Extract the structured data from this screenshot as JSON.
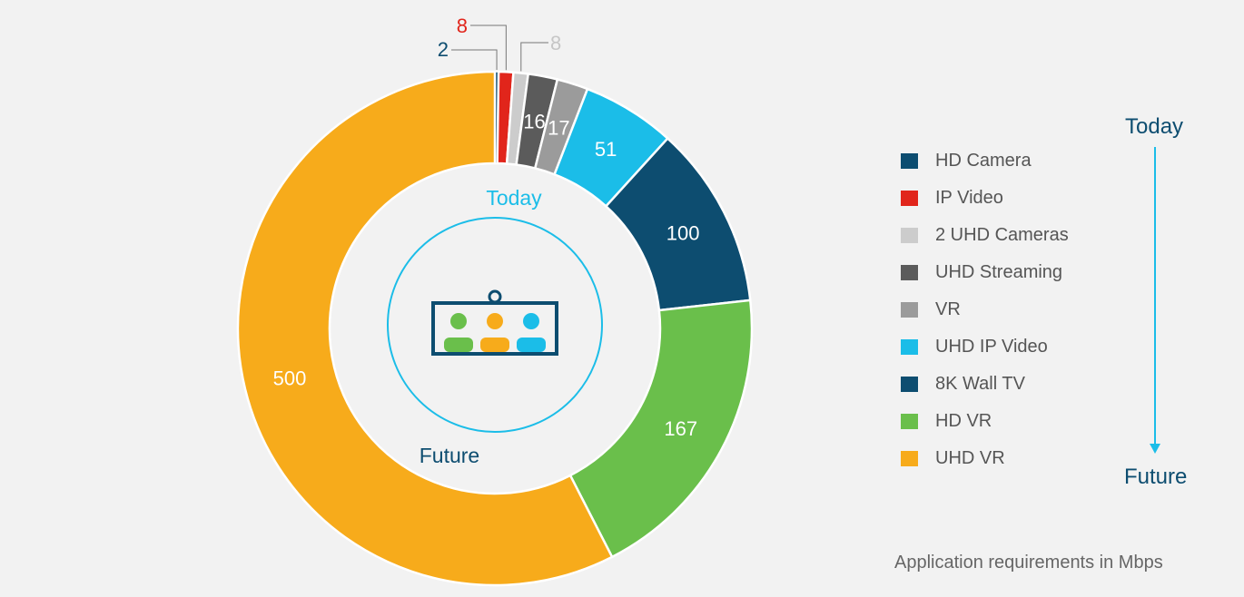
{
  "chart_data": {
    "type": "donut",
    "unit": "Mbps",
    "segments": [
      {
        "name": "HD Camera",
        "value": 2,
        "color": "#0d4d70",
        "label_color": "#0d4d70"
      },
      {
        "name": "IP Video",
        "value": 8,
        "color": "#e1251b",
        "label_color": "#e1251b"
      },
      {
        "name": "2 UHD Cameras",
        "value": 8,
        "color": "#cccccc",
        "label_color": "#c6c6c6"
      },
      {
        "name": "UHD Streaming",
        "value": 16,
        "color": "#5b5b5b",
        "label_color": "#ffffff"
      },
      {
        "name": "VR",
        "value": 17,
        "color": "#9b9b9b",
        "label_color": "#ffffff"
      },
      {
        "name": "UHD IP Video",
        "value": 51,
        "color": "#1bbde8",
        "label_color": "#ffffff"
      },
      {
        "name": "8K Wall TV",
        "value": 100,
        "color": "#0d4d70",
        "label_color": "#ffffff"
      },
      {
        "name": "HD VR",
        "value": 167,
        "color": "#6abf4b",
        "label_color": "#ffffff"
      },
      {
        "name": "UHD VR",
        "value": 500,
        "color": "#f7ab1b",
        "label_color": "#ffffff"
      }
    ],
    "center_labels": {
      "today": "Today",
      "future": "Future"
    },
    "icon": "video-conference-icon"
  },
  "legend_items": [
    "HD Camera",
    "IP Video",
    "2 UHD Cameras",
    "UHD Streaming",
    "VR",
    "UHD IP Video",
    "8K Wall TV",
    "HD VR",
    "UHD VR"
  ],
  "timeline": {
    "start": "Today",
    "end": "Future",
    "arrow_color": "#1bbde8"
  },
  "footnote": "Application requirements in Mbps",
  "colors": {
    "background": "#f2f2f2",
    "accent": "#1bbde8",
    "navy": "#0d4d70"
  }
}
